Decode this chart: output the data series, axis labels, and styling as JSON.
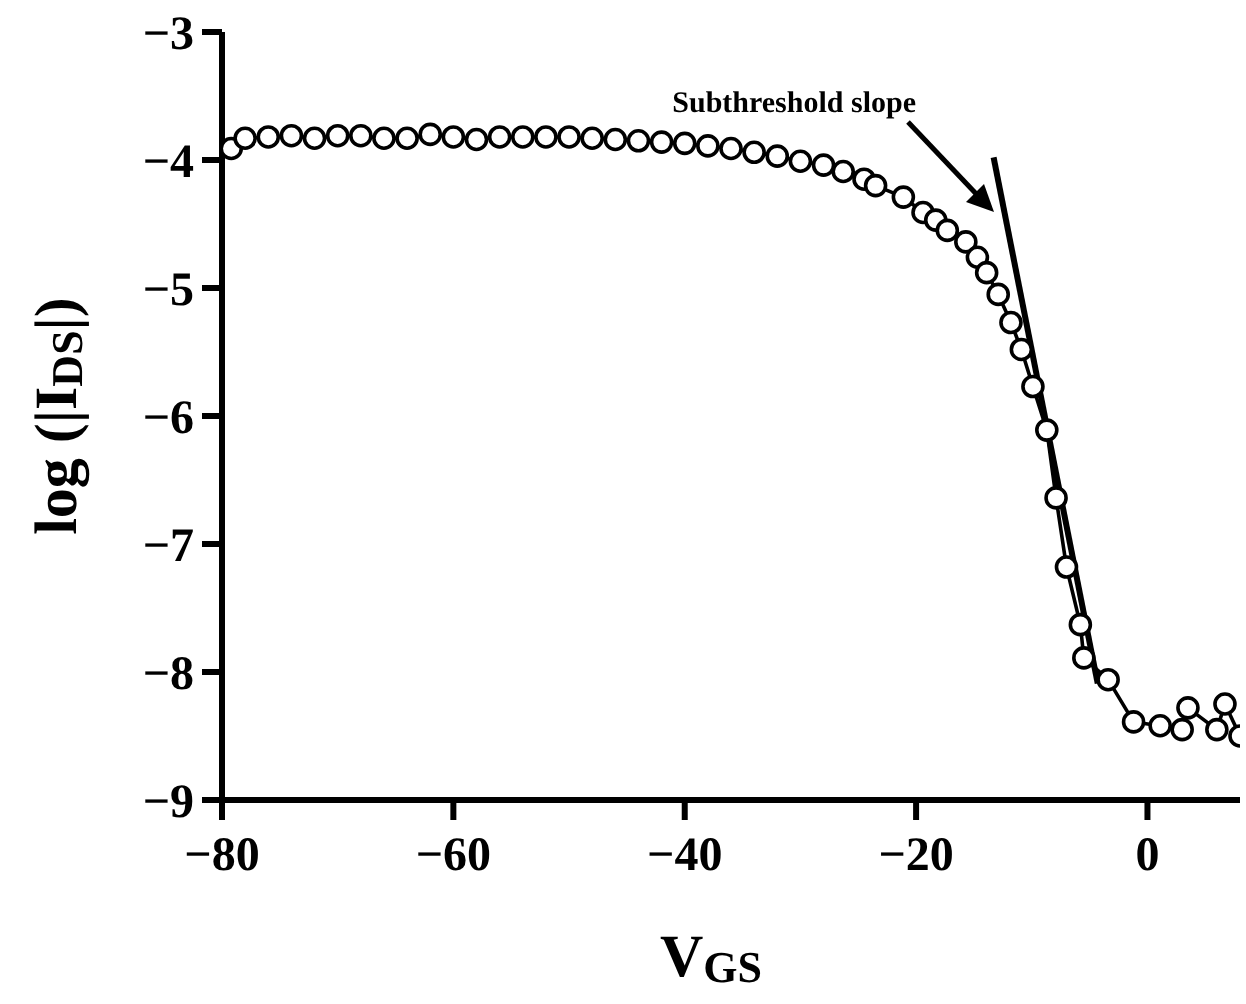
{
  "chart_data": {
    "type": "line",
    "xlabel": "V$_{GS}$",
    "ylabel": "log (|I$_{DS}$|)",
    "xlim": [
      -80,
      8
    ],
    "xticks": [
      -80,
      -60,
      -40,
      -20,
      0
    ],
    "ylim": [
      -9,
      -3
    ],
    "yticks": [
      -3,
      -4,
      -5,
      -6,
      -7,
      -8,
      -9
    ],
    "grid": false,
    "marker": "circle",
    "line_style": "solid",
    "annotations": [
      "Subthreshold slope"
    ],
    "series": [
      {
        "color": "#000000",
        "x": [
          -79.2,
          -78,
          -76,
          -74,
          -72,
          -70,
          -68,
          -66,
          -64,
          -62,
          -60,
          -58,
          -56,
          -54,
          -52,
          -50,
          -48,
          -46,
          -44,
          -42,
          -40,
          -38,
          -36,
          -34,
          -32,
          -30,
          -28,
          -26.3,
          -24.5,
          -23.5,
          -21.1,
          -19.4,
          -18.3,
          -17.3,
          -15.7,
          -14.7,
          -13.9,
          -12.9,
          -11.8,
          -10.9,
          -9.9,
          -8.7,
          -7.9,
          -7,
          -5.8,
          -5.5,
          -3.4,
          -1.2,
          1.1,
          3,
          3.5,
          6,
          6.7,
          8
        ],
        "values": [
          -3.91,
          -3.83,
          -3.82,
          -3.81,
          -3.83,
          -3.81,
          -3.81,
          -3.83,
          -3.83,
          -3.8,
          -3.82,
          -3.84,
          -3.82,
          -3.82,
          -3.82,
          -3.82,
          -3.83,
          -3.84,
          -3.85,
          -3.86,
          -3.87,
          -3.89,
          -3.91,
          -3.94,
          -3.97,
          -4.01,
          -4.04,
          -4.09,
          -4.15,
          -4.2,
          -4.29,
          -4.41,
          -4.47,
          -4.55,
          -4.64,
          -4.76,
          -4.88,
          -5.05,
          -5.27,
          -5.48,
          -5.77,
          -6.11,
          -6.64,
          -7.18,
          -7.63,
          -7.89,
          -8.06,
          -8.39,
          -8.42,
          -8.45,
          -8.28,
          -8.45,
          -8.25,
          -8.5
        ]
      },
      {
        "color": "#000000",
        "marker": "none",
        "x": [
          -13.3,
          -4.3
        ],
        "values": [
          -3.98,
          -8.09
        ]
      }
    ]
  }
}
